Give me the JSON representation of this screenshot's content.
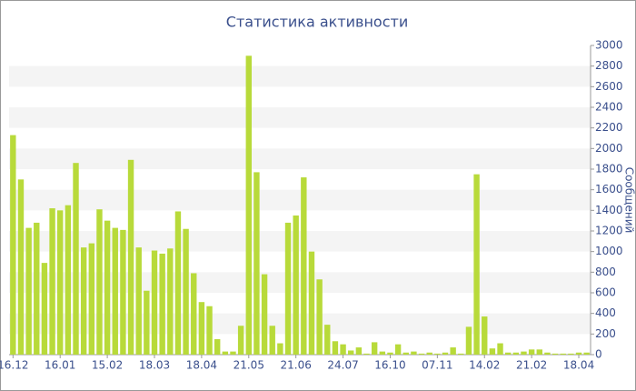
{
  "chart_data": {
    "type": "bar",
    "title": "Статистика активности",
    "y_axis_label": "Сообщений",
    "categories": [
      "16.12",
      null,
      null,
      null,
      null,
      null,
      "16.01",
      null,
      null,
      null,
      null,
      null,
      "15.02",
      null,
      null,
      null,
      null,
      null,
      "18.03",
      null,
      null,
      null,
      null,
      null,
      "18.04",
      null,
      null,
      null,
      null,
      null,
      "21.05",
      null,
      null,
      null,
      null,
      null,
      "21.06",
      null,
      null,
      null,
      null,
      null,
      "24.07",
      null,
      null,
      null,
      null,
      null,
      "16.10",
      null,
      null,
      null,
      null,
      null,
      "07.11",
      null,
      null,
      null,
      null,
      null,
      "14.02",
      null,
      null,
      null,
      null,
      null,
      "21.02",
      null,
      null,
      null,
      null,
      null,
      "18.04",
      null
    ],
    "values": [
      2130,
      1700,
      1230,
      1280,
      890,
      1420,
      1400,
      1450,
      1860,
      1040,
      1080,
      1410,
      1300,
      1230,
      1210,
      1890,
      1040,
      620,
      1010,
      980,
      1030,
      1390,
      1220,
      790,
      510,
      470,
      150,
      30,
      30,
      280,
      2900,
      1770,
      780,
      280,
      110,
      1280,
      1350,
      1720,
      1000,
      730,
      290,
      130,
      100,
      40,
      70,
      10,
      120,
      30,
      20,
      100,
      20,
      30,
      10,
      20,
      10,
      20,
      70,
      10,
      270,
      1750,
      370,
      60,
      110,
      20,
      20,
      30,
      50,
      50,
      20,
      10,
      10,
      10,
      20,
      20
    ],
    "color": "#b8da3a",
    "ylim": [
      0,
      3000
    ],
    "yticks": [
      0,
      200,
      400,
      600,
      800,
      1000,
      1200,
      1400,
      1600,
      1800,
      2000,
      2200,
      2400,
      2600,
      2800,
      3000
    ],
    "grid": true
  }
}
